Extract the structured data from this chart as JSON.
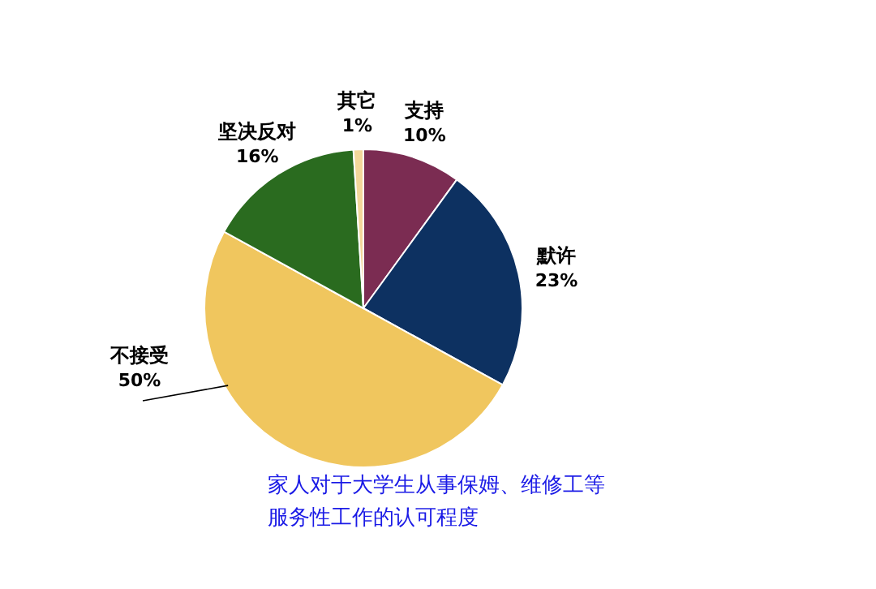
{
  "chart_data": {
    "type": "pie",
    "title": "家人对于大学生从事保姆、维修工等服务性工作的认可程度",
    "categories": [
      "支持",
      "默许",
      "不接受",
      "坚决反对",
      "其它"
    ],
    "values": [
      10,
      23,
      50,
      16,
      1
    ],
    "value_labels": [
      "10%",
      "23%",
      "50%",
      "16%",
      "1%"
    ],
    "colors": [
      "#7b2c52",
      "#0d3161",
      "#f0c65e",
      "#2a6b1f",
      "#f3d79a"
    ]
  }
}
